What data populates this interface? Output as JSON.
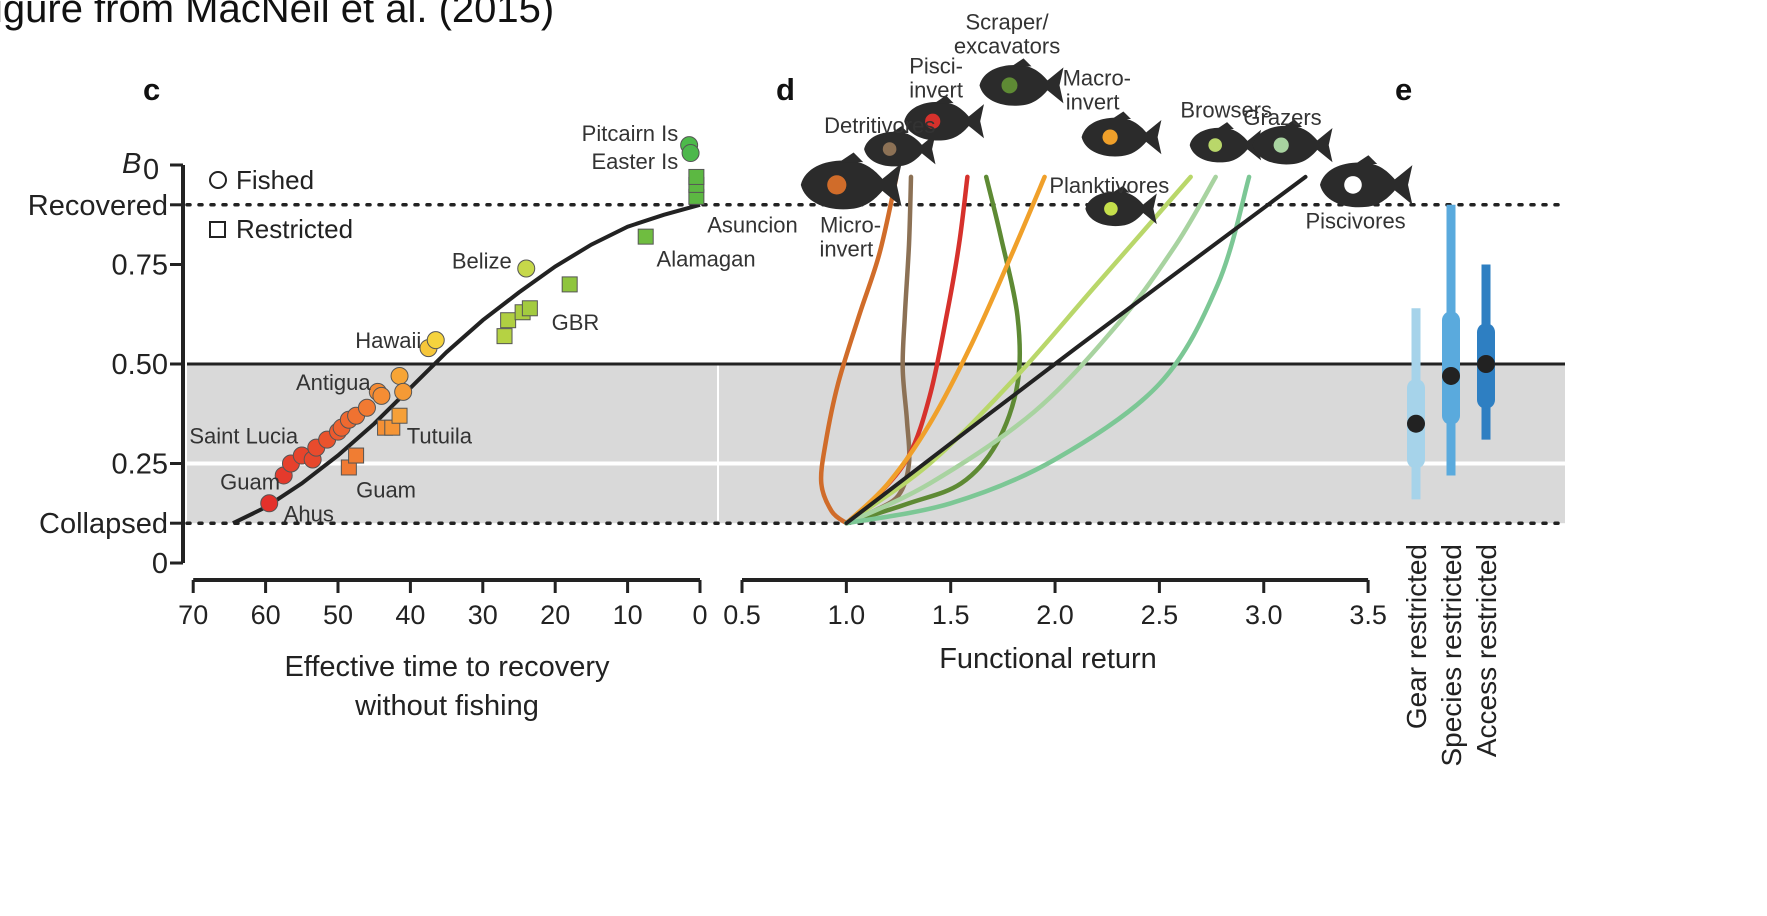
{
  "header_text": "igure from MacNeil et al. (2015)",
  "colors": {
    "band": "#d9d9d9",
    "curve": "#222222",
    "fish_silhouette": "#2b2b2b"
  },
  "chart_data": [
    {
      "panel": "c",
      "type": "scatter",
      "xlabel": [
        "Effective time to recovery",
        "without fishing"
      ],
      "x_ticks": [
        70,
        60,
        50,
        40,
        30,
        20,
        10,
        0
      ],
      "xlim": [
        70,
        0
      ],
      "ylim": [
        0,
        1
      ],
      "y_ticks": [
        {
          "value": 0,
          "label": "0"
        },
        {
          "value": 0.1,
          "label": "Collapsed"
        },
        {
          "value": 0.25,
          "label": "0.25"
        },
        {
          "value": 0.5,
          "label": "0.50"
        },
        {
          "value": 0.75,
          "label": "0.75"
        },
        {
          "value": 0.9,
          "label": "Recovered"
        }
      ],
      "y_top_symbol": {
        "letter": "B",
        "subscript": "0",
        "value": 1.0
      },
      "legend": [
        {
          "marker": "circle",
          "label": "Fished"
        },
        {
          "marker": "square",
          "label": "Restricted"
        }
      ],
      "fished": [
        {
          "x": 59.5,
          "y": 0.15,
          "color": "#e4312b"
        },
        {
          "x": 57.5,
          "y": 0.22,
          "color": "#e43a2c"
        },
        {
          "x": 56.5,
          "y": 0.25,
          "color": "#e6412c"
        },
        {
          "x": 55,
          "y": 0.27,
          "color": "#e6442c"
        },
        {
          "x": 53.5,
          "y": 0.26,
          "color": "#e7482d"
        },
        {
          "x": 53,
          "y": 0.29,
          "color": "#e84b2d"
        },
        {
          "x": 51.5,
          "y": 0.31,
          "color": "#ea532d"
        },
        {
          "x": 50,
          "y": 0.33,
          "color": "#ec5a2e"
        },
        {
          "x": 49.5,
          "y": 0.34,
          "color": "#ee622f"
        },
        {
          "x": 48.5,
          "y": 0.36,
          "color": "#ee6930"
        },
        {
          "x": 47.5,
          "y": 0.37,
          "color": "#f07231"
        },
        {
          "x": 46,
          "y": 0.39,
          "color": "#f27a32"
        },
        {
          "x": 44.5,
          "y": 0.43,
          "color": "#f48a33"
        },
        {
          "x": 44,
          "y": 0.42,
          "color": "#f58d34"
        },
        {
          "x": 41.5,
          "y": 0.47,
          "color": "#f7a536"
        },
        {
          "x": 41,
          "y": 0.43,
          "color": "#f59a35"
        },
        {
          "x": 37.5,
          "y": 0.54,
          "color": "#f6c63a"
        },
        {
          "x": 36.5,
          "y": 0.56,
          "color": "#f5d33d"
        },
        {
          "x": 24,
          "y": 0.74,
          "color": "#c6d84a"
        },
        {
          "x": 1.5,
          "y": 1.05,
          "color": "#4dba4a"
        },
        {
          "x": 1.3,
          "y": 1.03,
          "color": "#4db84c"
        }
      ],
      "restricted": [
        {
          "x": 48.5,
          "y": 0.24,
          "color": "#f07a33"
        },
        {
          "x": 47.5,
          "y": 0.27,
          "color": "#f07d33"
        },
        {
          "x": 43.5,
          "y": 0.34,
          "color": "#f59035"
        },
        {
          "x": 42.5,
          "y": 0.34,
          "color": "#f59536"
        },
        {
          "x": 41.5,
          "y": 0.37,
          "color": "#f6a038"
        },
        {
          "x": 27,
          "y": 0.57,
          "color": "#b5d243"
        },
        {
          "x": 26.5,
          "y": 0.61,
          "color": "#b0cf42"
        },
        {
          "x": 24.5,
          "y": 0.63,
          "color": "#aacd40"
        },
        {
          "x": 23.5,
          "y": 0.64,
          "color": "#a3cb3f"
        },
        {
          "x": 18,
          "y": 0.7,
          "color": "#8fc53e"
        },
        {
          "x": 7.5,
          "y": 0.82,
          "color": "#6fbd40"
        },
        {
          "x": 0.5,
          "y": 0.92,
          "color": "#5cb842"
        },
        {
          "x": 0.5,
          "y": 0.95,
          "color": "#5cb842"
        },
        {
          "x": 0.5,
          "y": 0.97,
          "color": "#5cb842"
        }
      ],
      "fit_curve": [
        [
          64.5,
          0.1
        ],
        [
          60,
          0.14
        ],
        [
          55,
          0.2
        ],
        [
          50,
          0.27
        ],
        [
          45,
          0.35
        ],
        [
          40,
          0.44
        ],
        [
          35,
          0.53
        ],
        [
          30,
          0.61
        ],
        [
          25,
          0.68
        ],
        [
          20,
          0.745
        ],
        [
          15,
          0.8
        ],
        [
          10,
          0.845
        ],
        [
          5,
          0.875
        ],
        [
          0,
          0.9
        ]
      ],
      "site_labels": [
        {
          "text": "Pitcairn Is",
          "x": 3,
          "y": 1.08
        },
        {
          "text": "Easter Is",
          "x": 3,
          "y": 1.01
        },
        {
          "text": "Asuncion",
          "x": -1,
          "y": 0.85
        },
        {
          "text": "Alamagan",
          "x": 6,
          "y": 0.765
        },
        {
          "text": "Belize",
          "x": 26,
          "y": 0.76
        },
        {
          "text": "GBR",
          "x": 20.5,
          "y": 0.605
        },
        {
          "text": "Hawaii",
          "x": 38.5,
          "y": 0.56
        },
        {
          "text": "Antigua",
          "x": 45.5,
          "y": 0.455
        },
        {
          "text": "Saint Lucia",
          "x": 55.5,
          "y": 0.32
        },
        {
          "text": "Tutuila",
          "x": 40.5,
          "y": 0.32
        },
        {
          "text": "Guam",
          "x": 58,
          "y": 0.205
        },
        {
          "text": "Guam",
          "x": 47.5,
          "y": 0.185
        },
        {
          "text": "Ahus",
          "x": 57.5,
          "y": 0.125
        }
      ]
    },
    {
      "panel": "d",
      "type": "line",
      "xlabel": "Functional return",
      "x_ticks": [
        "0.5",
        "1.0",
        "1.5",
        "2.0",
        "2.5",
        "3.0",
        "3.5"
      ],
      "xlim": [
        0.5,
        3.5
      ],
      "ylim": [
        0,
        1
      ],
      "series": [
        {
          "guild": "Micro-invert",
          "color": "#d06c2a",
          "points": [
            [
              1.0,
              0.1
            ],
            [
              0.93,
              0.13
            ],
            [
              0.88,
              0.2
            ],
            [
              0.9,
              0.3
            ],
            [
              0.96,
              0.45
            ],
            [
              1.06,
              0.62
            ],
            [
              1.16,
              0.78
            ],
            [
              1.24,
              0.97
            ]
          ]
        },
        {
          "guild": "Detritivores",
          "color": "#8c7155",
          "points": [
            [
              1.0,
              0.1
            ],
            [
              1.13,
              0.13
            ],
            [
              1.25,
              0.17
            ],
            [
              1.3,
              0.25
            ],
            [
              1.29,
              0.36
            ],
            [
              1.27,
              0.49
            ],
            [
              1.28,
              0.62
            ],
            [
              1.3,
              0.8
            ],
            [
              1.31,
              0.97
            ]
          ]
        },
        {
          "guild": "Pisci-invert",
          "color": "#d6312c",
          "points": [
            [
              1.0,
              0.1
            ],
            [
              1.15,
              0.17
            ],
            [
              1.3,
              0.27
            ],
            [
              1.4,
              0.42
            ],
            [
              1.48,
              0.62
            ],
            [
              1.54,
              0.8
            ],
            [
              1.58,
              0.97
            ]
          ]
        },
        {
          "guild": "Scraper/ excavators",
          "color": "#5e8a34",
          "points": [
            [
              1.0,
              0.1
            ],
            [
              1.3,
              0.15
            ],
            [
              1.55,
              0.2
            ],
            [
              1.72,
              0.3
            ],
            [
              1.82,
              0.45
            ],
            [
              1.82,
              0.62
            ],
            [
              1.74,
              0.82
            ],
            [
              1.67,
              0.97
            ]
          ]
        },
        {
          "guild": "Macro-invert",
          "color": "#f0a02a",
          "points": [
            [
              1.0,
              0.1
            ],
            [
              1.2,
              0.2
            ],
            [
              1.4,
              0.35
            ],
            [
              1.6,
              0.55
            ],
            [
              1.78,
              0.76
            ],
            [
              1.95,
              0.97
            ]
          ]
        },
        {
          "guild": "Browsers",
          "color": "#b9d76a",
          "points": [
            [
              1.0,
              0.1
            ],
            [
              1.4,
              0.25
            ],
            [
              1.8,
              0.46
            ],
            [
              2.2,
              0.7
            ],
            [
              2.65,
              0.97
            ]
          ]
        },
        {
          "guild": "Grazers",
          "color": "#a8d3a0",
          "points": [
            [
              1.0,
              0.1
            ],
            [
              1.4,
              0.2
            ],
            [
              1.9,
              0.38
            ],
            [
              2.3,
              0.6
            ],
            [
              2.58,
              0.8
            ],
            [
              2.77,
              0.97
            ]
          ]
        },
        {
          "guild": "Planktivores",
          "color": "#7cc795",
          "points": [
            [
              1.0,
              0.1
            ],
            [
              1.5,
              0.15
            ],
            [
              2.0,
              0.26
            ],
            [
              2.5,
              0.45
            ],
            [
              2.78,
              0.7
            ],
            [
              2.93,
              0.97
            ]
          ]
        },
        {
          "guild": "Piscivores",
          "color": "#222222",
          "points": [
            [
              1.0,
              0.1
            ],
            [
              2.1,
              0.54
            ],
            [
              3.2,
              0.97
            ]
          ]
        }
      ],
      "guild_labels": [
        {
          "text": "Scraper/",
          "x": 1.77,
          "y": 1.36
        },
        {
          "text": "excavators",
          "x": 1.77,
          "y": 1.3
        },
        {
          "text": "Pisci-",
          "x": 1.43,
          "y": 1.25
        },
        {
          "text": "invert",
          "x": 1.43,
          "y": 1.19
        },
        {
          "text": "Macro-",
          "x": 2.2,
          "y": 1.22
        },
        {
          "text": "invert",
          "x": 2.18,
          "y": 1.16
        },
        {
          "text": "Detritivores",
          "x": 1.16,
          "y": 1.1
        },
        {
          "text": "Browsers",
          "x": 2.82,
          "y": 1.14
        },
        {
          "text": "Grazers",
          "x": 3.09,
          "y": 1.12
        },
        {
          "text": "Planktivores",
          "x": 2.26,
          "y": 0.95
        },
        {
          "text": "Micro-",
          "x": 1.02,
          "y": 0.85
        },
        {
          "text": "invert",
          "x": 1.0,
          "y": 0.79
        },
        {
          "text": "Piscivores",
          "x": 3.44,
          "y": 0.86
        }
      ],
      "fish_icons": [
        {
          "name": "micro-invert-fish-icon",
          "x": 1.0,
          "y": 0.95,
          "scale": 1.2,
          "dot": "#d06c2a"
        },
        {
          "name": "detritivores-fish-icon",
          "x": 1.24,
          "y": 1.04,
          "scale": 0.85,
          "dot": "#8c7155"
        },
        {
          "name": "pisci-invert-fish-icon",
          "x": 1.45,
          "y": 1.11,
          "scale": 0.95,
          "dot": "#d6312c"
        },
        {
          "name": "scraper-fish-icon",
          "x": 1.82,
          "y": 1.2,
          "scale": 1.0,
          "dot": "#5e8a34"
        },
        {
          "name": "macro-invert-fish-icon",
          "x": 2.3,
          "y": 1.07,
          "scale": 0.95,
          "dot": "#f0a02a"
        },
        {
          "name": "browsers-fish-icon",
          "x": 2.8,
          "y": 1.05,
          "scale": 0.85,
          "dot": "#b9d76a"
        },
        {
          "name": "grazers-fish-icon",
          "x": 3.12,
          "y": 1.05,
          "scale": 0.95,
          "dot": "#a8d3a0"
        },
        {
          "name": "planktivores-fish-icon",
          "x": 2.3,
          "y": 0.89,
          "scale": 0.85,
          "dot": "#c5df4b"
        },
        {
          "name": "piscivores-fish-icon",
          "x": 3.47,
          "y": 0.95,
          "scale": 1.1,
          "dot": "#ffffff"
        }
      ]
    },
    {
      "panel": "e",
      "type": "interval",
      "categories": [
        "Gear restricted",
        "Species restricted",
        "Access restricted"
      ],
      "ylim": [
        0,
        1
      ],
      "estimates": [
        {
          "label": "Gear restricted",
          "color": "#a6d3ea",
          "median": 0.35,
          "inner": [
            0.26,
            0.44
          ],
          "outer": [
            0.16,
            0.64
          ]
        },
        {
          "label": "Species restricted",
          "color": "#5aaadd",
          "median": 0.47,
          "inner": [
            0.37,
            0.61
          ],
          "outer": [
            0.22,
            0.9
          ]
        },
        {
          "label": "Access restricted",
          "color": "#2e7fc2",
          "median": 0.5,
          "inner": [
            0.41,
            0.58
          ],
          "outer": [
            0.31,
            0.75
          ]
        }
      ]
    }
  ]
}
